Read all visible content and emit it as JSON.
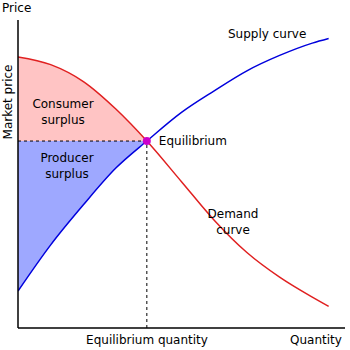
{
  "chart_data": {
    "type": "line",
    "x_label": "Quantity",
    "y_label": "Price",
    "x": [
      0,
      10,
      20,
      30,
      39.4,
      50,
      60,
      70,
      80,
      90,
      95
    ],
    "xlim": [
      0,
      100
    ],
    "ylim": [
      0,
      100
    ],
    "tick_labels": false,
    "grid": false,
    "series": [
      {
        "name": "Supply curve",
        "color": "#0000dd",
        "values": [
          12,
          27,
          40,
          52,
          60.7,
          70,
          77,
          83.5,
          88.5,
          92.5,
          94
        ]
      },
      {
        "name": "Demand curve",
        "color": "#e02020",
        "values": [
          88,
          85.5,
          80,
          71,
          60.7,
          47.5,
          35,
          24.5,
          16.5,
          10,
          7
        ]
      }
    ],
    "equilibrium": {
      "label": "Equilibrium",
      "x": 39.4,
      "y": 60.7,
      "color": "#cc00cc",
      "x_label": "Equilibrium quantity",
      "y_label": "Market price"
    },
    "surpluses": [
      {
        "label": "Consumer surplus",
        "color": "#ffc4c4"
      },
      {
        "label": "Producer surplus",
        "color": "#9ea8ff"
      }
    ]
  }
}
